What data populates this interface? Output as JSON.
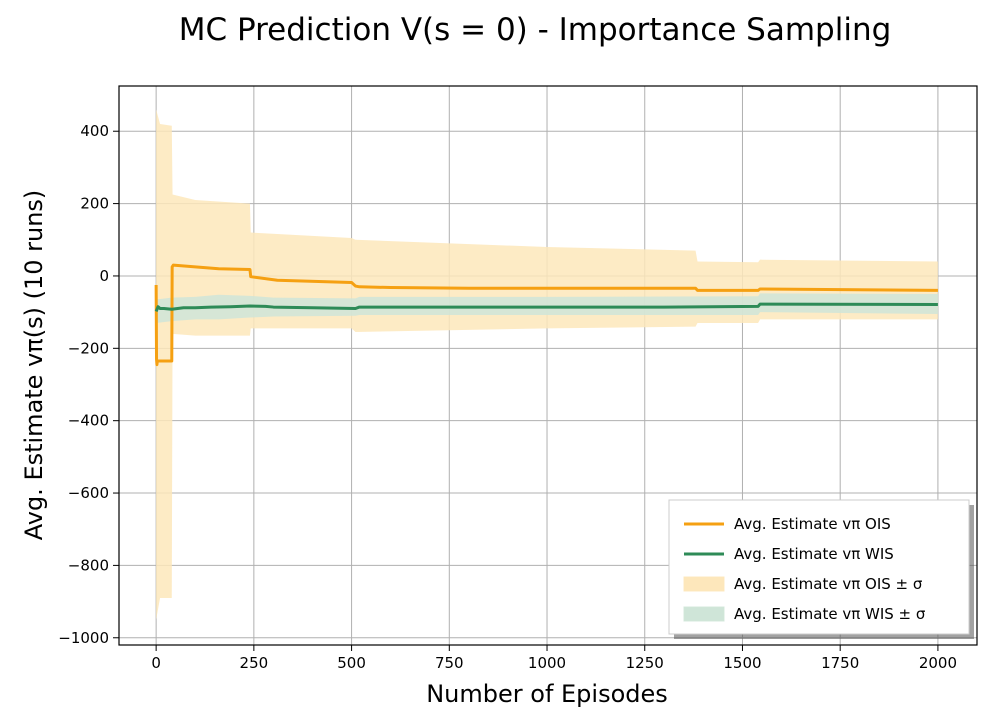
{
  "chart_data": {
    "type": "line",
    "title": "MC Prediction V(s = 0) - Importance Sampling",
    "xlabel": "Number of Episodes",
    "ylabel": "Avg. Estimate vπ(s) (10 runs)",
    "xlim": [
      -95,
      2100
    ],
    "ylim": [
      -1020,
      525
    ],
    "grid": true,
    "legend_position": "lower-right",
    "xticks": [
      0,
      250,
      500,
      750,
      1000,
      1250,
      1500,
      1750,
      2000
    ],
    "yticks": [
      -1000,
      -800,
      -600,
      -400,
      -200,
      0,
      200,
      400
    ],
    "xtick_labels": [
      "0",
      "250",
      "500",
      "750",
      "1000",
      "1250",
      "1500",
      "1750",
      "2000"
    ],
    "ytick_labels": [
      "−1000",
      "−800",
      "−600",
      "−400",
      "−200",
      "0",
      "200",
      "400"
    ],
    "series": [
      {
        "name": "Avg. Estimate vπ OIS",
        "kind": "line",
        "color": "#f5a012",
        "x": [
          0,
          1,
          2,
          3,
          40,
          41,
          44,
          100,
          160,
          240,
          242,
          310,
          500,
          510,
          520,
          600,
          800,
          1000,
          1380,
          1385,
          1540,
          1545,
          2000
        ],
        "y": [
          -25,
          -230,
          -245,
          -235,
          -235,
          25,
          30,
          25,
          20,
          18,
          -2,
          -12,
          -18,
          -28,
          -30,
          -32,
          -34,
          -34,
          -34,
          -40,
          -40,
          -36,
          -40
        ]
      },
      {
        "name": "Avg. Estimate vπ WIS",
        "kind": "line",
        "color": "#2e8b57",
        "x": [
          0,
          5,
          10,
          20,
          40,
          70,
          100,
          140,
          190,
          240,
          280,
          300,
          400,
          510,
          520,
          700,
          1000,
          1300,
          1540,
          1545,
          2000
        ],
        "y": [
          -98,
          -85,
          -90,
          -90,
          -92,
          -88,
          -88,
          -86,
          -85,
          -83,
          -84,
          -86,
          -88,
          -90,
          -86,
          -86,
          -86,
          -86,
          -84,
          -78,
          -79
        ]
      },
      {
        "name": "Avg. Estimate vπ OIS ± σ",
        "kind": "band",
        "color": "#fde7bb",
        "x": [
          0,
          5,
          10,
          40,
          42,
          100,
          240,
          242,
          500,
          510,
          1000,
          1380,
          1385,
          1540,
          1545,
          2000
        ],
        "upper": [
          460,
          440,
          420,
          415,
          225,
          210,
          200,
          120,
          105,
          100,
          80,
          70,
          40,
          38,
          45,
          40
        ],
        "lower": [
          -950,
          -920,
          -890,
          -890,
          -160,
          -165,
          -165,
          -145,
          -145,
          -155,
          -145,
          -140,
          -130,
          -130,
          -120,
          -120
        ]
      },
      {
        "name": "Avg. Estimate vπ WIS ± σ",
        "kind": "band",
        "color": "#cfe5d8",
        "x": [
          0,
          40,
          100,
          160,
          240,
          300,
          510,
          520,
          1000,
          1540,
          1545,
          2000
        ],
        "upper": [
          -65,
          -60,
          -58,
          -52,
          -55,
          -60,
          -62,
          -58,
          -58,
          -56,
          -48,
          -50
        ],
        "lower": [
          -130,
          -125,
          -120,
          -120,
          -115,
          -112,
          -110,
          -108,
          -108,
          -108,
          -100,
          -105
        ]
      }
    ]
  }
}
